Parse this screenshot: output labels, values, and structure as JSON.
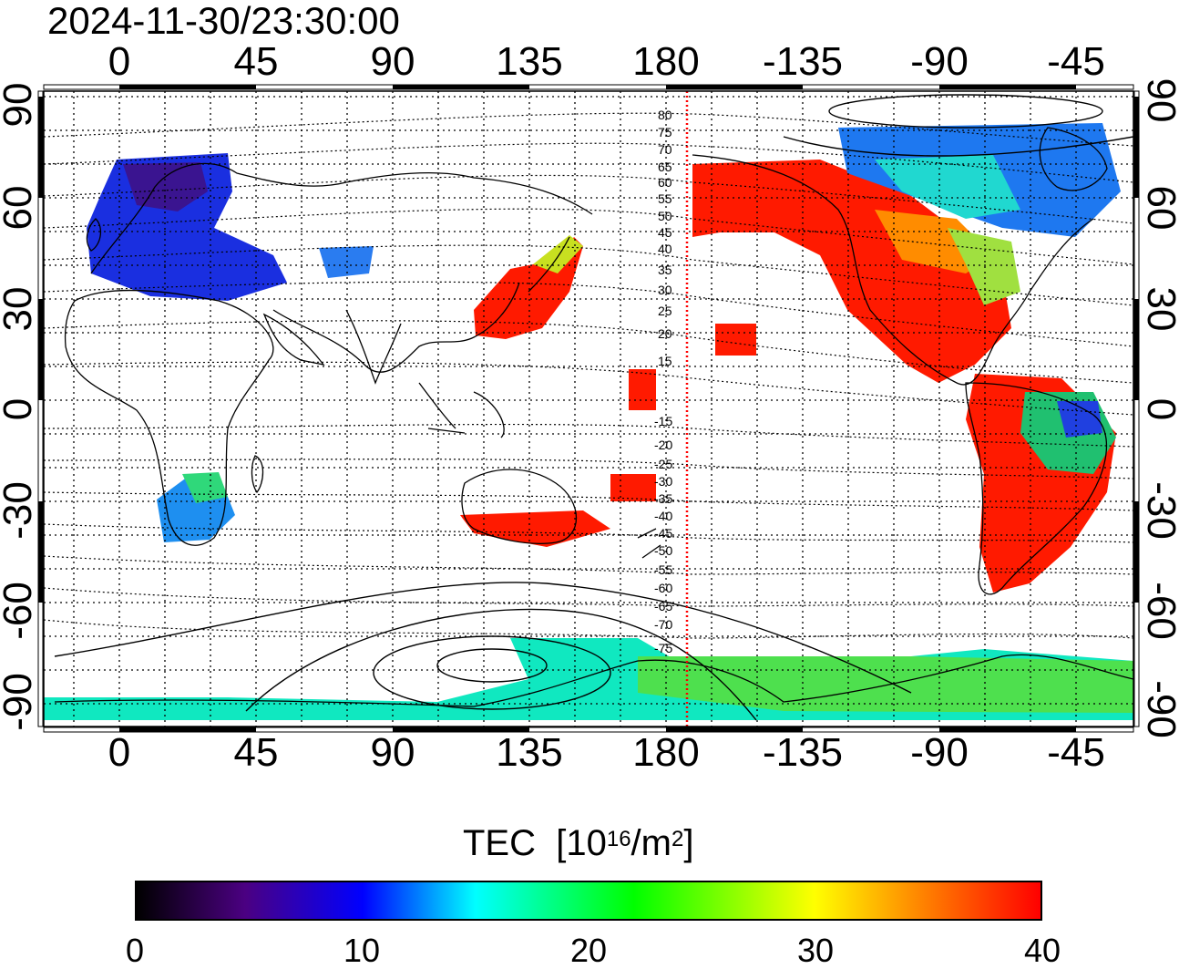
{
  "timestamp": "2024-11-30/23:30:00",
  "map": {
    "x_ticks": [
      "0",
      "45",
      "90",
      "135",
      "180",
      "-135",
      "-90",
      "-45"
    ],
    "y_ticks": [
      "90",
      "60",
      "30",
      "0",
      "-30",
      "-60",
      "-90"
    ],
    "x_tick_lon": [
      0,
      45,
      90,
      135,
      180,
      225,
      270,
      315
    ],
    "y_tick_lat": [
      90,
      60,
      30,
      0,
      -30,
      -60,
      -90
    ],
    "lon_range": [
      -25,
      335
    ],
    "lat_range": [
      -92,
      92
    ],
    "grid": "dotted",
    "terminator_longitude": 187
  },
  "contour_labels": {
    "north": [
      "80",
      "75",
      "70",
      "65",
      "60",
      "55",
      "50",
      "45",
      "40",
      "35",
      "30",
      "25",
      "20",
      "15"
    ],
    "south": [
      "-15",
      "-20",
      "-25",
      "-30",
      "-35",
      "-40",
      "-45",
      "-50",
      "-55",
      "-60",
      "-65",
      "-70",
      "-75"
    ]
  },
  "colorbar": {
    "label_text": "TEC",
    "unit_prefix": "[10",
    "unit_exp1": "16",
    "unit_mid": "/m",
    "unit_exp2": "2",
    "unit_suffix": "]",
    "ticks": [
      "0",
      "10",
      "20",
      "30",
      "40"
    ],
    "range": [
      0,
      40
    ],
    "colors": [
      "#000000",
      "#4b0082",
      "#0000ff",
      "#00ffff",
      "#00ff00",
      "#ffff00",
      "#ff8c00",
      "#ff0000"
    ]
  }
}
